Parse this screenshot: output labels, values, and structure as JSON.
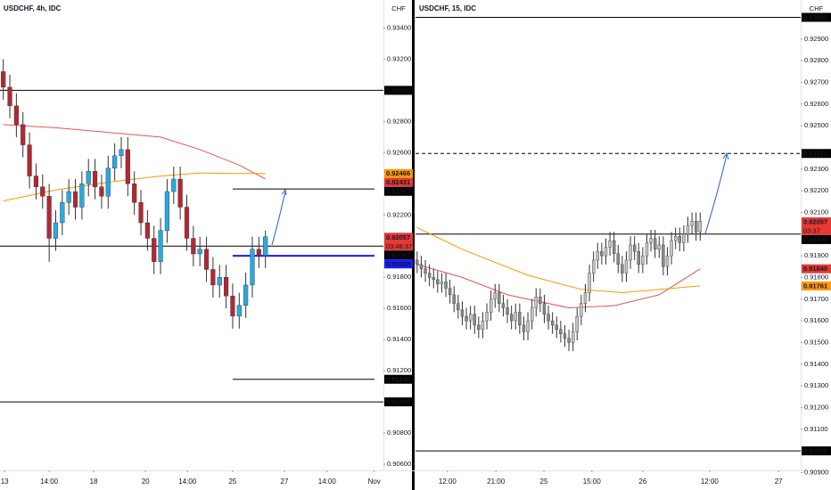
{
  "chart_data": [
    {
      "type": "candlestick",
      "title": "USDCHF, 4h, IDC",
      "currency": "CHF",
      "xlim": [
        -0.5,
        58
      ],
      "ylim": [
        0.9056,
        0.9358
      ],
      "xticks": [
        {
          "value": 0.2,
          "label": "13"
        },
        {
          "value": 7,
          "label": "14:00"
        },
        {
          "value": 13.8,
          "label": "18"
        },
        {
          "value": 21.7,
          "label": "20"
        },
        {
          "value": 28.1,
          "label": "14:00"
        },
        {
          "value": 35,
          "label": "25"
        },
        {
          "value": 42.9,
          "label": "27"
        },
        {
          "value": 49.4,
          "label": "14:00"
        },
        {
          "value": 56.6,
          "label": "Nov"
        }
      ],
      "yticks": [
        {
          "value": 0.934,
          "label": "0.93400"
        },
        {
          "value": 0.932,
          "label": "0.93200"
        },
        {
          "value": 0.928,
          "label": "0.92800"
        },
        {
          "value": 0.926,
          "label": "0.92600"
        },
        {
          "value": 0.922,
          "label": "0.92200"
        },
        {
          "value": 0.918,
          "label": "0.91800"
        },
        {
          "value": 0.916,
          "label": "0.91600"
        },
        {
          "value": 0.914,
          "label": "0.91400"
        },
        {
          "value": 0.912,
          "label": "0.91200"
        },
        {
          "value": 0.908,
          "label": "0.90800"
        },
        {
          "value": 0.906,
          "label": "0.90600"
        }
      ],
      "open": [
        0.9312,
        0.9302,
        0.929,
        0.9278,
        0.9265,
        0.9245,
        0.9238,
        0.9232,
        0.9205,
        0.9215,
        0.9228,
        0.9235,
        0.9225,
        0.924,
        0.9248,
        0.9238,
        0.9232,
        0.925,
        0.9258,
        0.9262,
        0.924,
        0.9228,
        0.9215,
        0.9205,
        0.919,
        0.921,
        0.9235,
        0.9243,
        0.9225,
        0.9205,
        0.9195,
        0.9198,
        0.9185,
        0.9175,
        0.918,
        0.9168,
        0.9155,
        0.9162,
        0.9175,
        0.9198,
        0.9194
      ],
      "high": [
        0.932,
        0.931,
        0.9298,
        0.9286,
        0.9273,
        0.9253,
        0.9246,
        0.924,
        0.9223,
        0.9236,
        0.9243,
        0.9243,
        0.9248,
        0.9256,
        0.9256,
        0.9246,
        0.9258,
        0.9266,
        0.927,
        0.927,
        0.9248,
        0.9236,
        0.9223,
        0.9213,
        0.9218,
        0.9243,
        0.9251,
        0.9251,
        0.9233,
        0.9213,
        0.9206,
        0.9206,
        0.9193,
        0.9188,
        0.9188,
        0.9176,
        0.917,
        0.9183,
        0.9206,
        0.9206,
        0.921
      ],
      "low": [
        0.9294,
        0.9282,
        0.927,
        0.9257,
        0.9237,
        0.923,
        0.9224,
        0.919,
        0.9197,
        0.9207,
        0.922,
        0.9217,
        0.9217,
        0.9232,
        0.923,
        0.9224,
        0.9224,
        0.9242,
        0.925,
        0.9232,
        0.922,
        0.9207,
        0.9197,
        0.9182,
        0.9182,
        0.9202,
        0.9227,
        0.9217,
        0.9197,
        0.9187,
        0.9187,
        0.9177,
        0.9167,
        0.9167,
        0.916,
        0.9147,
        0.9147,
        0.9154,
        0.9167,
        0.9186,
        0.9186
      ],
      "close": [
        0.9302,
        0.929,
        0.9278,
        0.9265,
        0.9245,
        0.9238,
        0.9232,
        0.9205,
        0.9215,
        0.9228,
        0.9235,
        0.9225,
        0.924,
        0.9248,
        0.9238,
        0.9232,
        0.925,
        0.9258,
        0.9262,
        0.924,
        0.9228,
        0.9215,
        0.9205,
        0.919,
        0.921,
        0.9235,
        0.9243,
        0.9225,
        0.9205,
        0.9195,
        0.9198,
        0.9185,
        0.9175,
        0.918,
        0.9168,
        0.9155,
        0.9162,
        0.9175,
        0.9198,
        0.9194,
        0.9206
      ],
      "up_color": "#29a9e1",
      "down_color": "#b22833",
      "wick_color": "#333333",
      "moving_averages": [
        {
          "color": "#ef5350",
          "x": [
            0,
            8,
            16,
            24,
            30,
            36,
            40
          ],
          "values": [
            0.9278,
            0.9276,
            0.9273,
            0.927,
            0.9262,
            0.9252,
            0.92431
          ]
        },
        {
          "color": "#ff9800",
          "x": [
            0,
            8,
            16,
            24,
            30,
            36,
            40
          ],
          "values": [
            0.9229,
            0.9236,
            0.9241,
            0.9245,
            0.9247,
            0.92466,
            0.92466
          ]
        }
      ],
      "levels": [
        {
          "value": 0.93,
          "label": "0.93000",
          "color": "#000000",
          "dash": false,
          "from": null
        },
        {
          "value": 0.92367,
          "color": "#000000",
          "dash": false,
          "from": 35
        },
        {
          "value": 0.92,
          "label": "0.92000",
          "color": "#000000",
          "dash": false,
          "from": null
        },
        {
          "value": 0.91938,
          "color": "#1a1aff",
          "dash": false,
          "from": 35
        },
        {
          "value": 0.91145,
          "color": "#000000",
          "dash": false,
          "from": 35
        },
        {
          "value": 0.91,
          "label": "0.91000",
          "color": "#000000",
          "dash": false,
          "from": null
        }
      ],
      "price_labels": [
        {
          "value": 0.92466,
          "color": "#ff9800"
        },
        {
          "value": 0.92431,
          "color": "#e53935"
        }
      ],
      "last_price": {
        "value": 0.92057,
        "countdown": "03:48:37",
        "color": "#e53935"
      }
    },
    {
      "type": "candlestick",
      "title": "USDCHF, 15, IDC",
      "currency": "CHF",
      "xlim": [
        -0.4,
        93.5
      ],
      "ylim": [
        0.9091,
        0.9308
      ],
      "xticks": [
        {
          "value": 7.4,
          "label": "12:00"
        },
        {
          "value": 19.2,
          "label": "21:00"
        },
        {
          "value": 30.9,
          "label": "25"
        },
        {
          "value": 42.6,
          "label": "15:00"
        },
        {
          "value": 55,
          "label": "26"
        },
        {
          "value": 71.3,
          "label": "12:00"
        },
        {
          "value": 88.1,
          "label": "27"
        }
      ],
      "yticks": [
        {
          "value": 0.929,
          "label": "0.92900"
        },
        {
          "value": 0.928,
          "label": "0.92800"
        },
        {
          "value": 0.927,
          "label": "0.92700"
        },
        {
          "value": 0.926,
          "label": "0.92600"
        },
        {
          "value": 0.925,
          "label": "0.92500"
        },
        {
          "value": 0.923,
          "label": "0.92300"
        },
        {
          "value": 0.922,
          "label": "0.92200"
        },
        {
          "value": 0.921,
          "label": "0.92100"
        },
        {
          "value": 0.919,
          "label": "0.91900"
        },
        {
          "value": 0.918,
          "label": "0.91800"
        },
        {
          "value": 0.917,
          "label": "0.91700"
        },
        {
          "value": 0.916,
          "label": "0.91600"
        },
        {
          "value": 0.915,
          "label": "0.91500"
        },
        {
          "value": 0.914,
          "label": "0.91400"
        },
        {
          "value": 0.913,
          "label": "0.91300"
        },
        {
          "value": 0.912,
          "label": "0.91200"
        },
        {
          "value": 0.911,
          "label": "0.91100"
        },
        {
          "value": 0.909,
          "label": "0.90900"
        }
      ],
      "open": [
        0.9188,
        0.9186,
        0.9184,
        0.9182,
        0.918,
        0.9179,
        0.9177,
        0.9178,
        0.9175,
        0.9172,
        0.9168,
        0.9165,
        0.9162,
        0.916,
        0.9163,
        0.9158,
        0.9156,
        0.916,
        0.9164,
        0.917,
        0.9173,
        0.9168,
        0.9166,
        0.9163,
        0.916,
        0.9164,
        0.9158,
        0.9155,
        0.916,
        0.9166,
        0.9171,
        0.9168,
        0.9163,
        0.916,
        0.9158,
        0.9156,
        0.9154,
        0.9152,
        0.915,
        0.9155,
        0.9162,
        0.9168,
        0.9173,
        0.9182,
        0.9188,
        0.9192,
        0.919,
        0.9194,
        0.9197,
        0.9191,
        0.9186,
        0.9182,
        0.9188,
        0.9195,
        0.9192,
        0.9186,
        0.919,
        0.9196,
        0.9198,
        0.9193,
        0.9195,
        0.9185,
        0.919,
        0.9197,
        0.9199,
        0.9196,
        0.92,
        0.9204,
        0.9206,
        0.9201
      ],
      "high": [
        0.9192,
        0.919,
        0.9188,
        0.9186,
        0.9184,
        0.9183,
        0.9182,
        0.9182,
        0.9179,
        0.9176,
        0.9172,
        0.9169,
        0.9166,
        0.9167,
        0.9167,
        0.9162,
        0.9164,
        0.9168,
        0.9174,
        0.9177,
        0.9177,
        0.9172,
        0.917,
        0.9167,
        0.9168,
        0.9168,
        0.9162,
        0.9164,
        0.917,
        0.9175,
        0.9175,
        0.9172,
        0.9167,
        0.9164,
        0.9162,
        0.916,
        0.9158,
        0.9156,
        0.9159,
        0.9166,
        0.9172,
        0.9177,
        0.9186,
        0.9192,
        0.9196,
        0.9196,
        0.9198,
        0.9201,
        0.9201,
        0.9195,
        0.919,
        0.9192,
        0.9199,
        0.9199,
        0.9196,
        0.9194,
        0.92,
        0.9202,
        0.9202,
        0.9199,
        0.9199,
        0.9194,
        0.9201,
        0.9203,
        0.9203,
        0.9204,
        0.9208,
        0.921,
        0.921,
        0.921
      ],
      "low": [
        0.9182,
        0.918,
        0.9178,
        0.9176,
        0.9175,
        0.9173,
        0.9173,
        0.9171,
        0.9168,
        0.9164,
        0.9161,
        0.9158,
        0.9156,
        0.9156,
        0.9154,
        0.9152,
        0.9152,
        0.9156,
        0.916,
        0.9166,
        0.9164,
        0.9162,
        0.9159,
        0.9156,
        0.9156,
        0.9154,
        0.9151,
        0.9151,
        0.9156,
        0.9162,
        0.9164,
        0.9159,
        0.9156,
        0.9154,
        0.9152,
        0.915,
        0.9148,
        0.9146,
        0.9146,
        0.9151,
        0.9158,
        0.9164,
        0.9169,
        0.9178,
        0.9184,
        0.9186,
        0.9186,
        0.919,
        0.9187,
        0.9182,
        0.9178,
        0.9178,
        0.9184,
        0.9188,
        0.9182,
        0.9182,
        0.9186,
        0.9192,
        0.9189,
        0.9189,
        0.9181,
        0.9181,
        0.9186,
        0.9193,
        0.9192,
        0.9192,
        0.9196,
        0.92,
        0.9197,
        0.9197
      ],
      "close": [
        0.9186,
        0.9184,
        0.9182,
        0.918,
        0.9179,
        0.9177,
        0.9178,
        0.9175,
        0.9172,
        0.9168,
        0.9165,
        0.9162,
        0.916,
        0.9163,
        0.9158,
        0.9156,
        0.916,
        0.9164,
        0.917,
        0.9173,
        0.9168,
        0.9166,
        0.9163,
        0.916,
        0.9164,
        0.9158,
        0.9155,
        0.916,
        0.9166,
        0.9171,
        0.9168,
        0.9163,
        0.916,
        0.9158,
        0.9156,
        0.9154,
        0.9152,
        0.915,
        0.9155,
        0.9162,
        0.9168,
        0.9173,
        0.9182,
        0.9188,
        0.9192,
        0.919,
        0.9194,
        0.9197,
        0.9191,
        0.9186,
        0.9182,
        0.9188,
        0.9195,
        0.9192,
        0.9186,
        0.919,
        0.9196,
        0.9198,
        0.9193,
        0.9195,
        0.9185,
        0.919,
        0.9197,
        0.9199,
        0.9196,
        0.92,
        0.9204,
        0.9206,
        0.9201,
        0.9206
      ],
      "up_color": "#c4c4c4",
      "down_color": "#8a8a8a",
      "wick_color": "#333333",
      "moving_averages": [
        {
          "color": "#ef5350",
          "x": [
            0,
            11,
            22,
            37,
            48,
            59,
            69
          ],
          "values": [
            0.9186,
            0.918,
            0.9172,
            0.9166,
            0.9167,
            0.9172,
            0.9184
          ]
        },
        {
          "color": "#ff9800",
          "x": [
            0,
            11,
            27,
            40,
            50,
            69
          ],
          "values": [
            0.9203,
            0.9193,
            0.9181,
            0.91745,
            0.9173,
            0.91761
          ]
        }
      ],
      "levels": [
        {
          "value": 0.93,
          "label": "0.93000",
          "color": "#000000",
          "dash": false,
          "from": null
        },
        {
          "value": 0.92372,
          "color": "#000000",
          "dash": true,
          "from": null
        },
        {
          "value": 0.92,
          "label": "0.92000",
          "color": "#000000",
          "dash": false,
          "from": null
        },
        {
          "value": 0.91,
          "label": "0.91000",
          "color": "#000000",
          "dash": false,
          "from": null
        }
      ],
      "price_labels": [
        {
          "value": 0.9184,
          "label": "0.91840",
          "color": "#e53935"
        },
        {
          "value": 0.91761,
          "color": "#ff9800"
        }
      ],
      "last_price": {
        "value": 0.92057,
        "countdown": "03:37",
        "color": "#e53935"
      }
    }
  ]
}
